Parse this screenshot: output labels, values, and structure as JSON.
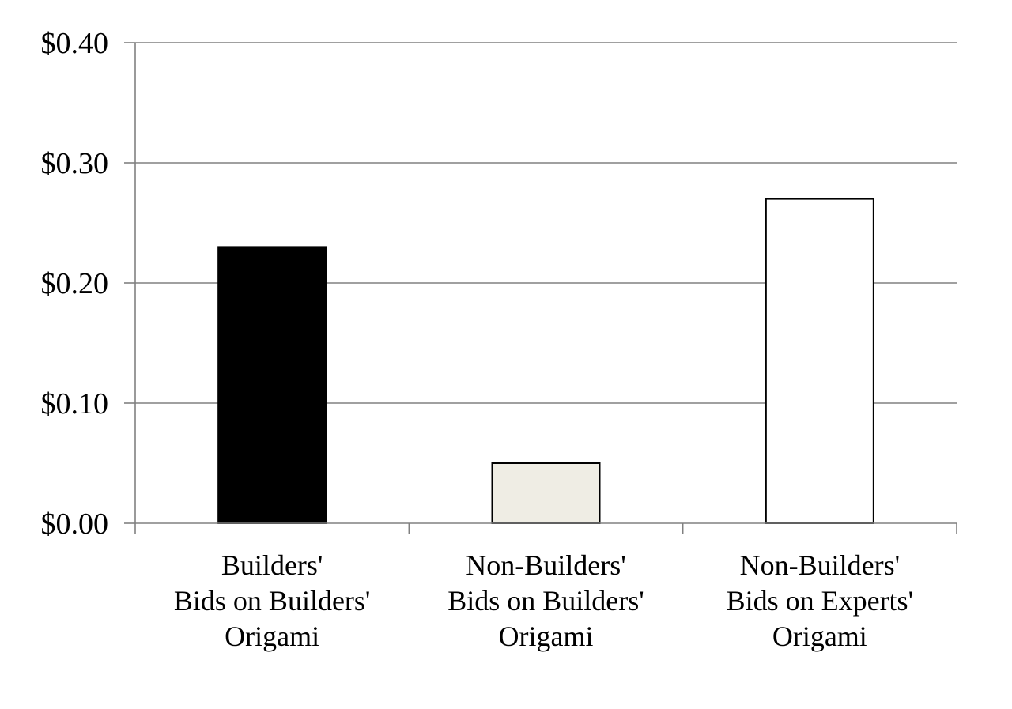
{
  "chart_data": {
    "type": "bar",
    "title": "",
    "xlabel": "",
    "ylabel": "",
    "categories": [
      [
        "Builders'",
        "Bids on Builders'",
        "Origami"
      ],
      [
        "Non-Builders'",
        "Bids on Builders'",
        "Origami"
      ],
      [
        "Non-Builders'",
        "Bids on Experts'",
        "Origami"
      ]
    ],
    "values": [
      0.23,
      0.05,
      0.27
    ],
    "bar_colors": [
      "#000000",
      "#efede4",
      "#ffffff"
    ],
    "ylim": [
      0,
      0.4
    ],
    "yticks": [
      0.0,
      0.1,
      0.2,
      0.3,
      0.4
    ],
    "ytick_labels": [
      "$0.00",
      "$0.10",
      "$0.20",
      "$0.30",
      "$0.40"
    ],
    "grid": true,
    "legend": "none"
  }
}
